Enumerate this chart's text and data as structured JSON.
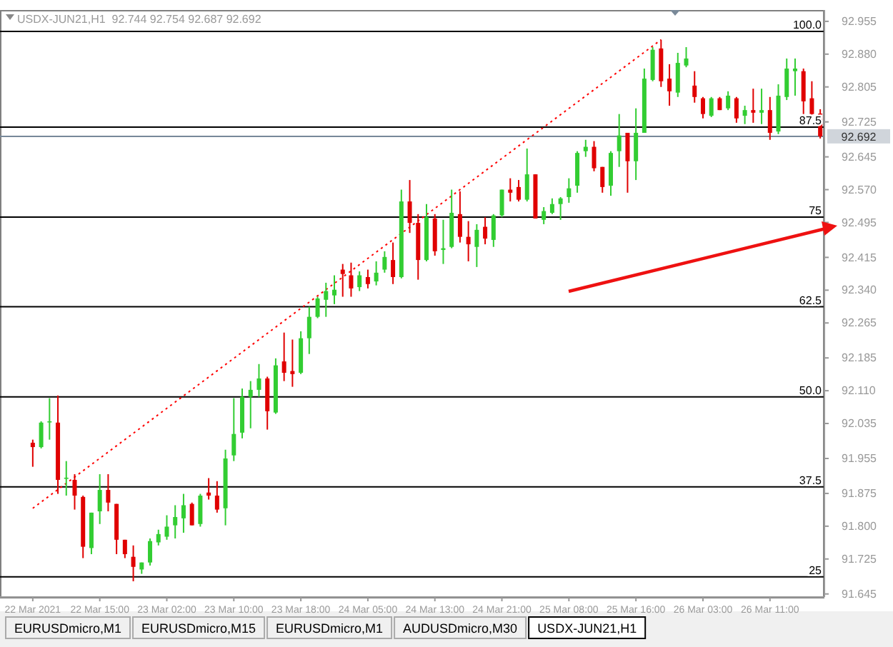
{
  "chart_data": {
    "type": "candlestick",
    "categories": [
      "22 Mar 2021",
      null,
      null,
      null,
      null,
      null,
      null,
      null,
      "22 Mar 15:00",
      null,
      null,
      null,
      null,
      null,
      null,
      null,
      "23 Mar 02:00",
      null,
      null,
      null,
      null,
      null,
      null,
      null,
      "23 Mar 10:00",
      null,
      null,
      null,
      null,
      null,
      null,
      null,
      "23 Mar 18:00",
      null,
      null,
      null,
      null,
      null,
      null,
      null,
      "24 Mar 05:00",
      null,
      null,
      null,
      null,
      null,
      null,
      null,
      "24 Mar 13:00",
      null,
      null,
      null,
      null,
      null,
      null,
      null,
      "24 Mar 21:00",
      null,
      null,
      null,
      null,
      null,
      null,
      null,
      "25 Mar 08:00",
      null,
      null,
      null,
      null,
      null,
      null,
      null,
      "25 Mar 16:00",
      null,
      null,
      null,
      null,
      null,
      null,
      null,
      "26 Mar 03:00",
      null,
      null,
      null,
      null,
      null,
      null,
      null,
      "26 Mar 11:00",
      null,
      null,
      null,
      null,
      null,
      null
    ],
    "series": [
      {
        "type": "candlestick",
        "ohlc": [
          [
            91.991,
            91.998,
            91.936,
            91.981
          ],
          [
            91.981,
            92.04,
            91.978,
            92.037
          ],
          [
            92.039,
            92.093,
            91.998,
            92.04
          ],
          [
            92.037,
            92.099,
            91.874,
            91.906
          ],
          [
            91.91,
            91.949,
            91.87,
            91.911
          ],
          [
            91.906,
            91.919,
            91.838,
            91.87
          ],
          [
            91.867,
            91.87,
            91.727,
            91.753
          ],
          [
            91.75,
            91.831,
            91.736,
            91.831
          ],
          [
            91.834,
            91.919,
            91.805,
            91.883
          ],
          [
            91.883,
            91.919,
            91.834,
            91.854
          ],
          [
            91.851,
            91.851,
            91.736,
            91.769
          ],
          [
            91.769,
            91.769,
            91.727,
            91.736
          ],
          [
            91.73,
            91.756,
            91.674,
            91.707
          ],
          [
            91.701,
            91.717,
            91.691,
            91.717
          ],
          [
            91.717,
            91.772,
            91.71,
            91.766
          ],
          [
            91.763,
            91.792,
            91.756,
            91.782
          ],
          [
            91.776,
            91.825,
            91.769,
            91.799
          ],
          [
            91.802,
            91.848,
            91.772,
            91.821
          ],
          [
            91.818,
            91.874,
            91.785,
            91.848
          ],
          [
            91.851,
            91.854,
            91.802,
            91.802
          ],
          [
            91.805,
            91.874,
            91.799,
            91.87
          ],
          [
            91.877,
            91.91,
            91.861,
            91.87
          ],
          [
            91.87,
            91.903,
            91.831,
            91.838
          ],
          [
            91.841,
            91.975,
            91.802,
            91.955
          ],
          [
            91.962,
            92.093,
            91.949,
            92.011
          ],
          [
            92.014,
            92.115,
            92.001,
            92.096
          ],
          [
            92.096,
            92.132,
            92.024,
            92.112
          ],
          [
            92.112,
            92.171,
            92.096,
            92.138
          ],
          [
            92.138,
            92.142,
            92.021,
            92.063
          ],
          [
            92.06,
            92.184,
            92.057,
            92.168
          ],
          [
            92.177,
            92.243,
            92.132,
            92.151
          ],
          [
            92.155,
            92.227,
            92.119,
            92.148
          ],
          [
            92.151,
            92.246,
            92.148,
            92.23
          ],
          [
            92.23,
            92.302,
            92.194,
            92.279
          ],
          [
            92.279,
            92.325,
            92.276,
            92.321
          ],
          [
            92.318,
            92.357,
            92.279,
            92.338
          ],
          [
            92.328,
            92.374,
            92.308,
            92.341
          ],
          [
            92.387,
            92.4,
            92.325,
            92.377
          ],
          [
            92.374,
            92.403,
            92.325,
            92.344
          ],
          [
            92.347,
            92.383,
            92.338,
            92.374
          ],
          [
            92.37,
            92.387,
            92.344,
            92.354
          ],
          [
            92.36,
            92.406,
            92.351,
            92.38
          ],
          [
            92.387,
            92.429,
            92.38,
            92.416
          ],
          [
            92.409,
            92.449,
            92.354,
            92.37
          ],
          [
            92.37,
            92.57,
            92.367,
            92.543
          ],
          [
            92.543,
            92.592,
            92.471,
            92.494
          ],
          [
            92.494,
            92.514,
            92.364,
            92.409
          ],
          [
            92.409,
            92.537,
            92.406,
            92.507
          ],
          [
            92.504,
            92.514,
            92.419,
            92.429
          ],
          [
            92.432,
            92.501,
            92.4,
            92.436
          ],
          [
            92.439,
            92.57,
            92.436,
            92.517
          ],
          [
            92.514,
            92.566,
            92.449,
            92.462
          ],
          [
            92.462,
            92.498,
            92.406,
            92.445
          ],
          [
            92.439,
            92.491,
            92.393,
            92.478
          ],
          [
            92.485,
            92.507,
            92.445,
            92.458
          ],
          [
            92.455,
            92.514,
            92.439,
            92.511
          ],
          [
            92.511,
            92.57,
            92.507,
            92.57
          ],
          [
            92.57,
            92.596,
            92.543,
            92.563
          ],
          [
            92.576,
            92.592,
            92.543,
            92.547
          ],
          [
            92.547,
            92.664,
            92.543,
            92.605
          ],
          [
            92.605,
            92.605,
            92.504,
            92.504
          ],
          [
            92.501,
            92.53,
            92.491,
            92.521
          ],
          [
            92.517,
            92.55,
            92.514,
            92.537
          ],
          [
            92.537,
            92.553,
            92.501,
            92.55
          ],
          [
            92.553,
            92.596,
            92.54,
            92.573
          ],
          [
            92.579,
            92.658,
            92.563,
            92.654
          ],
          [
            92.658,
            92.684,
            92.645,
            92.668
          ],
          [
            92.668,
            92.681,
            92.612,
            92.619
          ],
          [
            92.622,
            92.622,
            92.563,
            92.576
          ],
          [
            92.579,
            92.658,
            92.556,
            92.654
          ],
          [
            92.658,
            92.743,
            92.622,
            92.694
          ],
          [
            92.7,
            92.7,
            92.563,
            92.635
          ],
          [
            92.635,
            92.756,
            92.592,
            92.7
          ],
          [
            92.7,
            92.847,
            92.7,
            92.824
          ],
          [
            92.821,
            92.896,
            92.818,
            92.89
          ],
          [
            92.893,
            92.913,
            92.805,
            92.818
          ],
          [
            92.824,
            92.857,
            92.762,
            92.795
          ],
          [
            92.792,
            92.883,
            92.782,
            92.86
          ],
          [
            92.854,
            92.896,
            92.85,
            92.87
          ],
          [
            92.808,
            92.841,
            92.769,
            92.782
          ],
          [
            92.779,
            92.782,
            92.733,
            92.743
          ],
          [
            92.739,
            92.782,
            92.736,
            92.779
          ],
          [
            92.779,
            92.782,
            92.752,
            92.752
          ],
          [
            92.756,
            92.795,
            92.752,
            92.785
          ],
          [
            92.779,
            92.782,
            92.723,
            92.733
          ],
          [
            92.739,
            92.762,
            92.72,
            92.752
          ],
          [
            92.752,
            92.801,
            92.723,
            92.746
          ],
          [
            92.746,
            92.801,
            92.72,
            92.752
          ],
          [
            92.752,
            92.782,
            92.684,
            92.7
          ],
          [
            92.703,
            92.811,
            92.697,
            92.785
          ],
          [
            92.782,
            92.87,
            92.775,
            92.847
          ],
          [
            92.841,
            92.87,
            92.785,
            92.847
          ],
          [
            92.841,
            92.847,
            92.743,
            92.772
          ],
          [
            92.779,
            92.818,
            92.733,
            92.743
          ],
          [
            92.744,
            92.754,
            92.687,
            92.692
          ]
        ],
        "colors": [
          "#e00000",
          "#32cd32",
          "#32cd32",
          "#e00000",
          "#32cd32",
          "#e00000",
          "#e00000",
          "#32cd32",
          "#32cd32",
          "#e00000",
          "#e00000",
          "#e00000",
          "#e00000",
          "#32cd32",
          "#32cd32",
          "#32cd32",
          "#32cd32",
          "#32cd32",
          "#32cd32",
          "#e00000",
          "#32cd32",
          "#e00000",
          "#e00000",
          "#32cd32",
          "#32cd32",
          "#32cd32",
          "#32cd32",
          "#32cd32",
          "#e00000",
          "#32cd32",
          "#e00000",
          "#e00000",
          "#32cd32",
          "#32cd32",
          "#32cd32",
          "#32cd32",
          "#32cd32",
          "#e00000",
          "#e00000",
          "#32cd32",
          "#e00000",
          "#32cd32",
          "#32cd32",
          "#e00000",
          "#32cd32",
          "#e00000",
          "#e00000",
          "#32cd32",
          "#e00000",
          "#32cd32",
          "#32cd32",
          "#e00000",
          "#e00000",
          "#32cd32",
          "#e00000",
          "#32cd32",
          "#32cd32",
          "#e00000",
          "#e00000",
          "#32cd32",
          "#e00000",
          "#32cd32",
          "#32cd32",
          "#32cd32",
          "#32cd32",
          "#32cd32",
          "#32cd32",
          "#e00000",
          "#e00000",
          "#32cd32",
          "#32cd32",
          "#e00000",
          "#32cd32",
          "#32cd32",
          "#32cd32",
          "#e00000",
          "#e00000",
          "#32cd32",
          "#32cd32",
          "#e00000",
          "#e00000",
          "#32cd32",
          "#e00000",
          "#32cd32",
          "#e00000",
          "#32cd32",
          "#e00000",
          "#32cd32",
          "#e00000",
          "#32cd32",
          "#32cd32",
          "#32cd32",
          "#e00000",
          "#e00000",
          "#e00000"
        ]
      },
      {
        "type": "line",
        "color": "#ff0000",
        "line_style": "dotted",
        "values": [
          91.841,
          null,
          null,
          null,
          null,
          null,
          null,
          null,
          null,
          null,
          null,
          null,
          null,
          null,
          null,
          null,
          null,
          null,
          null,
          null,
          null,
          null,
          null,
          null,
          null,
          null,
          null,
          null,
          null,
          null,
          null,
          null,
          null,
          null,
          null,
          null,
          null,
          null,
          null,
          null,
          null,
          null,
          null,
          null,
          null,
          null,
          null,
          null,
          null,
          null,
          null,
          null,
          null,
          null,
          null,
          null,
          null,
          null,
          null,
          null,
          null,
          null,
          null,
          null,
          null,
          null,
          null,
          null,
          null,
          null,
          null,
          null,
          null,
          null,
          null,
          92.913,
          null,
          null,
          null,
          null,
          null,
          null,
          null,
          null,
          null,
          null,
          null,
          null,
          null,
          null,
          null,
          null,
          null,
          null,
          null
        ]
      }
    ],
    "ylim": [
      91.638,
      92.981
    ],
    "yticks": [
      92.955,
      {
        "value": 92.88,
        "label": "92.880"
      },
      92.805,
      92.725,
      92.645,
      {
        "value": 92.57,
        "label": "92.570"
      },
      92.495,
      92.415,
      {
        "value": 92.34,
        "label": "92.340"
      },
      92.265,
      92.185,
      {
        "value": 92.11,
        "label": "92.110"
      },
      92.035,
      91.955,
      91.875,
      {
        "value": 91.8,
        "label": "91.800"
      },
      91.725,
      91.645
    ],
    "ref_lines": [
      {
        "axis": "y",
        "value": 92.932,
        "color": "#000000"
      },
      {
        "axis": "y",
        "value": 92.713,
        "color": "#000000"
      },
      {
        "axis": "y",
        "value": 92.507,
        "color": "#000000"
      },
      {
        "axis": "y",
        "value": 92.302,
        "color": "#000000"
      },
      {
        "axis": "y",
        "value": 92.096,
        "color": "#000000"
      },
      {
        "axis": "y",
        "value": 91.89,
        "color": "#000000"
      },
      {
        "axis": "y",
        "value": 91.684,
        "color": "#000000"
      },
      {
        "axis": "y",
        "value": 92.692,
        "label": "92.692",
        "color": "#778899"
      }
    ],
    "annotations": [
      "USDX-JUN21,H1  92.744 92.754 92.687 92.692",
      "EURUSDmicro,M1",
      "EURUSDmicro,M15",
      "EURUSDmicro,M1",
      "AUDUSDmicro,M30",
      "USDX-JUN21,H1",
      {
        "text": "100.0",
        "y": 92.932
      },
      {
        "text": "87.5",
        "y": 92.713
      },
      {
        "text": "75",
        "y": 92.507
      },
      {
        "text": "62.5",
        "y": 92.302
      },
      {
        "text": "50.0",
        "y": 92.096
      },
      {
        "text": "37.5",
        "y": 91.89
      },
      {
        "text": "25",
        "y": 91.684
      }
    ]
  }
}
